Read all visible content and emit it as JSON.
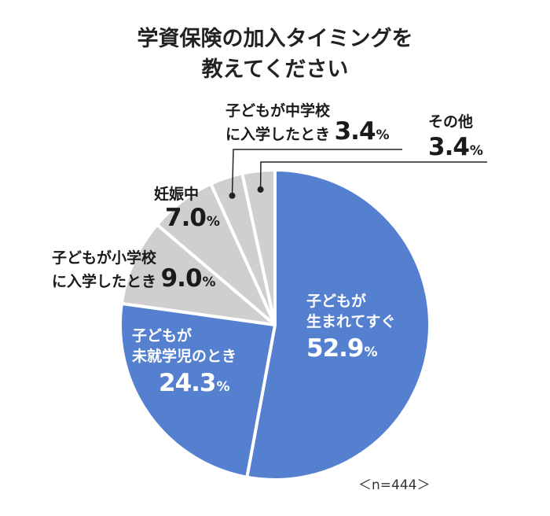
{
  "chart_data": {
    "type": "pie",
    "title_lines": [
      "学資保険の加入タイミングを",
      "教えてください"
    ],
    "slices": [
      {
        "label_lines": [
          "子どもが",
          "生まれてすぐ"
        ],
        "value": 52.9,
        "value_text": "52.9",
        "unit": "%",
        "color": "#5580d0"
      },
      {
        "label_lines": [
          "子どもが",
          "未就学児のとき"
        ],
        "value": 24.3,
        "value_text": "24.3",
        "unit": "%",
        "color": "#5580d0"
      },
      {
        "label_lines": [
          "子どもが小学校",
          "に入学したとき"
        ],
        "value": 9.0,
        "value_text": "9.0",
        "unit": "%",
        "color": "#cfcfcf"
      },
      {
        "label_lines": [
          "妊娠中"
        ],
        "value": 7.0,
        "value_text": "7.0",
        "unit": "%",
        "color": "#cfcfcf"
      },
      {
        "label_lines": [
          "子どもが中学校",
          "に入学したとき"
        ],
        "value": 3.4,
        "value_text": "3.4",
        "unit": "%",
        "color": "#cfcfcf"
      },
      {
        "label_lines": [
          "その他"
        ],
        "value": 3.4,
        "value_text": "3.4",
        "unit": "%",
        "color": "#cfcfcf"
      }
    ],
    "start_angle_deg": 0,
    "direction": "clockwise",
    "note": "＜n=444＞"
  }
}
